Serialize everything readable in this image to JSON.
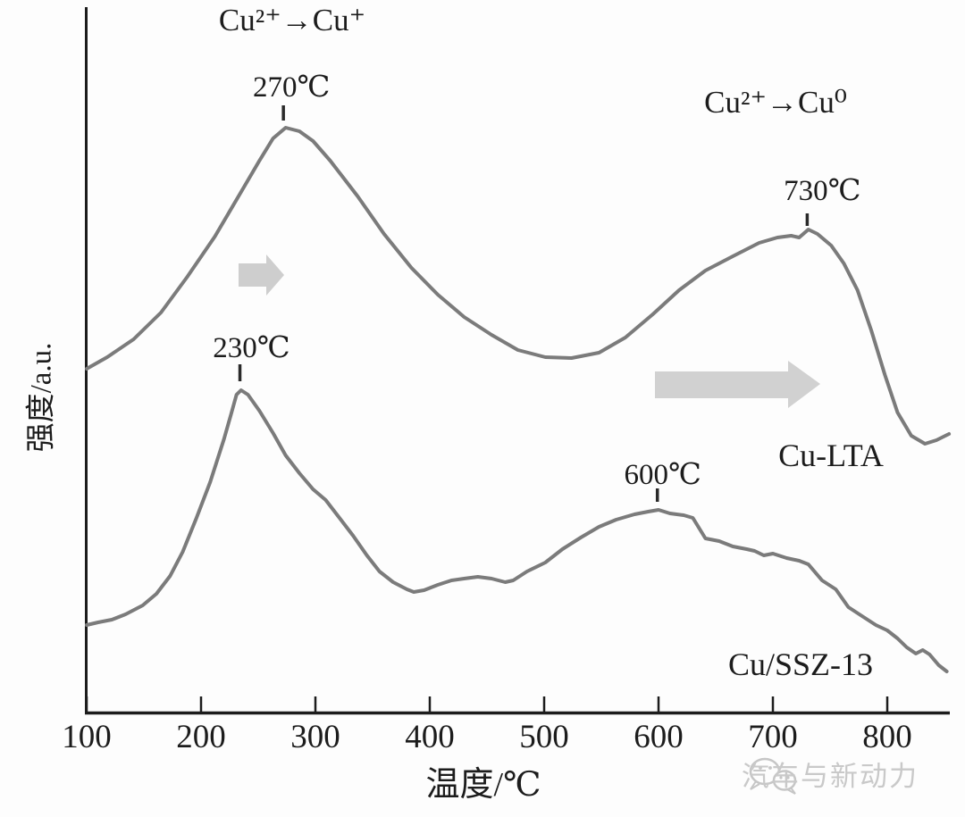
{
  "chart_data": {
    "type": "line",
    "title": "",
    "xlabel": "温度/℃",
    "ylabel": "强度/a.u.",
    "x_ticks": [
      100,
      200,
      300,
      400,
      500,
      600,
      700,
      800
    ],
    "x_range": [
      100,
      855
    ],
    "y_units": "a.u. (arbitrary units, baseline at x-axis = 0)",
    "grid": false,
    "legend_position": "inline labels next to curves",
    "series": [
      {
        "name": "Cu-LTA",
        "points": [
          [
            100,
            387
          ],
          [
            118,
            400
          ],
          [
            141,
            420
          ],
          [
            165,
            450
          ],
          [
            188,
            490
          ],
          [
            212,
            535
          ],
          [
            235,
            585
          ],
          [
            251,
            620
          ],
          [
            263,
            645
          ],
          [
            274,
            657
          ],
          [
            286,
            653
          ],
          [
            298,
            642
          ],
          [
            313,
            620
          ],
          [
            337,
            580
          ],
          [
            360,
            538
          ],
          [
            384,
            500
          ],
          [
            407,
            470
          ],
          [
            430,
            445
          ],
          [
            454,
            425
          ],
          [
            477,
            408
          ],
          [
            501,
            400
          ],
          [
            524,
            399
          ],
          [
            548,
            405
          ],
          [
            571,
            422
          ],
          [
            595,
            448
          ],
          [
            618,
            475
          ],
          [
            641,
            497
          ],
          [
            665,
            513
          ],
          [
            688,
            528
          ],
          [
            704,
            534
          ],
          [
            716,
            536
          ],
          [
            723,
            534
          ],
          [
            731,
            543
          ],
          [
            739,
            538
          ],
          [
            751,
            525
          ],
          [
            762,
            505
          ],
          [
            774,
            475
          ],
          [
            786,
            430
          ],
          [
            798,
            380
          ],
          [
            809,
            338
          ],
          [
            821,
            312
          ],
          [
            833,
            303
          ],
          [
            843,
            307
          ],
          [
            854,
            314
          ]
        ]
      },
      {
        "name": "Cu/SSZ-13",
        "points": [
          [
            100,
            100
          ],
          [
            110,
            103
          ],
          [
            122,
            106
          ],
          [
            134,
            112
          ],
          [
            149,
            122
          ],
          [
            161,
            135
          ],
          [
            173,
            155
          ],
          [
            184,
            182
          ],
          [
            196,
            220
          ],
          [
            208,
            260
          ],
          [
            220,
            308
          ],
          [
            226,
            335
          ],
          [
            231,
            358
          ],
          [
            235,
            363
          ],
          [
            241,
            358
          ],
          [
            251,
            340
          ],
          [
            263,
            315
          ],
          [
            274,
            290
          ],
          [
            286,
            270
          ],
          [
            298,
            252
          ],
          [
            309,
            240
          ],
          [
            321,
            220
          ],
          [
            333,
            200
          ],
          [
            345,
            178
          ],
          [
            356,
            160
          ],
          [
            368,
            148
          ],
          [
            380,
            140
          ],
          [
            386,
            137
          ],
          [
            395,
            139
          ],
          [
            407,
            145
          ],
          [
            419,
            150
          ],
          [
            430,
            152
          ],
          [
            442,
            154
          ],
          [
            454,
            152
          ],
          [
            466,
            148
          ],
          [
            473,
            150
          ],
          [
            485,
            160
          ],
          [
            501,
            170
          ],
          [
            516,
            185
          ],
          [
            532,
            198
          ],
          [
            548,
            210
          ],
          [
            563,
            218
          ],
          [
            579,
            224
          ],
          [
            591,
            227
          ],
          [
            600,
            229
          ],
          [
            610,
            225
          ],
          [
            622,
            223
          ],
          [
            630,
            220
          ],
          [
            641,
            197
          ],
          [
            653,
            194
          ],
          [
            665,
            188
          ],
          [
            677,
            185
          ],
          [
            684,
            183
          ],
          [
            692,
            178
          ],
          [
            700,
            180
          ],
          [
            712,
            175
          ],
          [
            723,
            172
          ],
          [
            731,
            168
          ],
          [
            743,
            150
          ],
          [
            755,
            140
          ],
          [
            766,
            120
          ],
          [
            778,
            110
          ],
          [
            790,
            100
          ],
          [
            800,
            94
          ],
          [
            809,
            85
          ],
          [
            817,
            75
          ],
          [
            825,
            68
          ],
          [
            831,
            72
          ],
          [
            837,
            67
          ],
          [
            845,
            55
          ],
          [
            852,
            48
          ]
        ]
      }
    ],
    "annotations": {
      "reaction_left": "Cu²⁺→Cu⁺",
      "reaction_right": "Cu²⁺→Cu⁰",
      "peaks": [
        {
          "series": "Cu-LTA",
          "t": 272,
          "label": "270℃"
        },
        {
          "series": "Cu/SSZ-13",
          "t": 234,
          "label": "230℃"
        },
        {
          "series": "Cu/SSZ-13",
          "t": 599,
          "label": "600℃"
        },
        {
          "series": "Cu-LTA",
          "t": 730,
          "label": "730℃"
        }
      ],
      "arrows": [
        {
          "name": "shift-arrow-small",
          "meaning": "peak shift to higher temperature"
        },
        {
          "name": "shift-arrow-large",
          "meaning": "peak shift to higher temperature"
        }
      ]
    }
  },
  "watermark": {
    "text": "汽车与新动力",
    "icon": "wechat-logo"
  },
  "colors": {
    "curve": "#7b7b7b",
    "axis": "#1c1c1c",
    "text": "#1c1c1c",
    "arrow": "#c6c6c6",
    "watermark": "#c9c9c9"
  }
}
